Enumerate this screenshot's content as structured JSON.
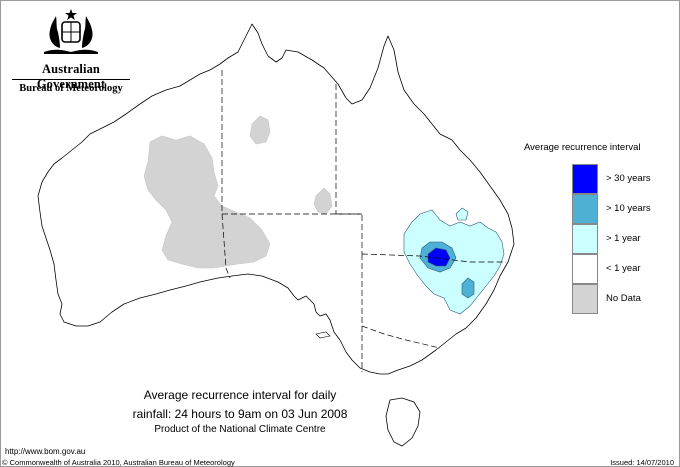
{
  "branding": {
    "government": "Australian Government",
    "bureau": "Bureau of Meteorology"
  },
  "legend": {
    "title": "Average recurrence interval",
    "items": [
      {
        "label": "> 30 years",
        "color": "#0000ff"
      },
      {
        "label": "> 10 years",
        "color": "#4fb0d6"
      },
      {
        "label": "> 1 year",
        "color": "#ccffff"
      },
      {
        "label": "< 1 year",
        "color": "#ffffff"
      },
      {
        "label": "No Data",
        "color": "#d3d3d3"
      }
    ]
  },
  "caption": {
    "line1": "Average recurrence interval for daily",
    "line2": "rainfall: 24 hours to 9am on 03 Jun 2008",
    "line3": "Product of the National Climate Centre"
  },
  "footer": {
    "url": "http://www.bom.gov.au",
    "copyright": "© Commonwealth of Australia 2010, Australian Bureau of Meteorology",
    "issued": "Issued: 14/07/2010"
  }
}
